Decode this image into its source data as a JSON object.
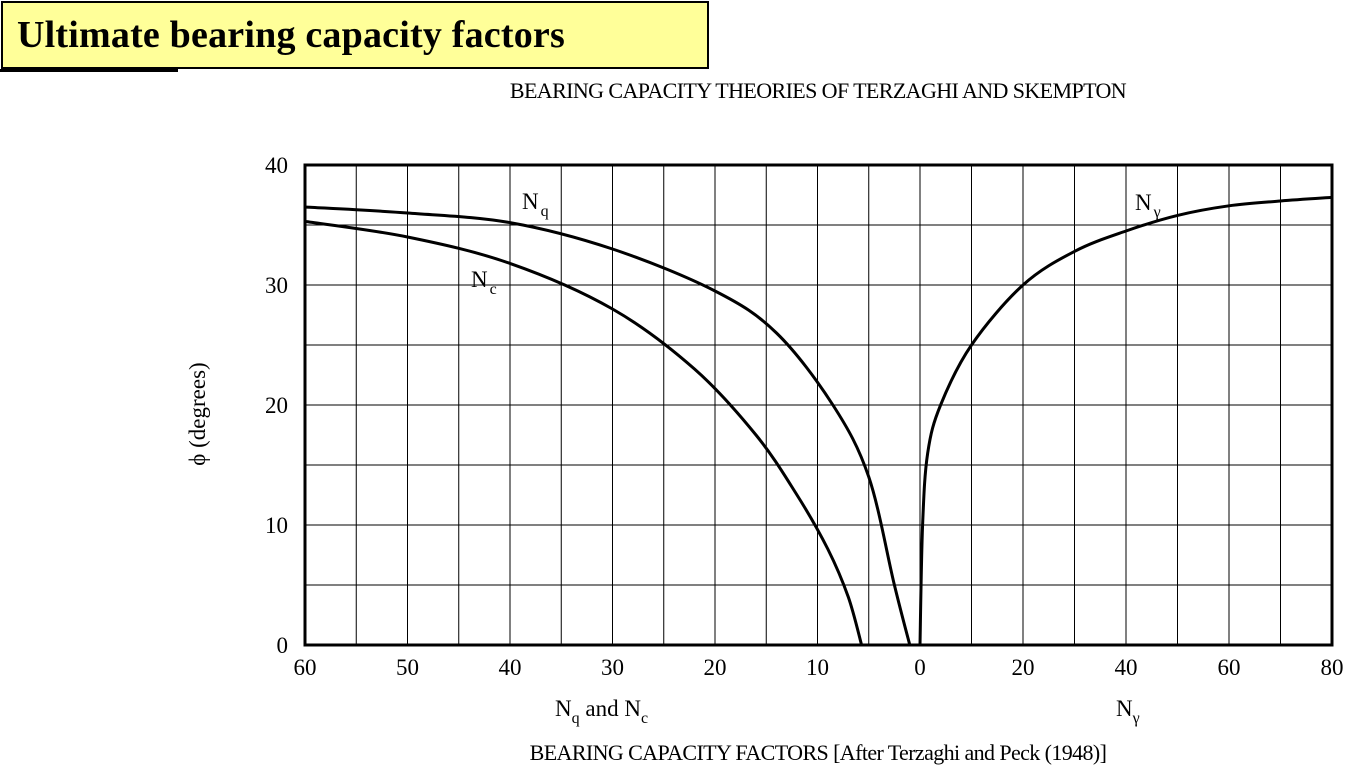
{
  "header": {
    "title": "Ultimate bearing capacity factors",
    "title_bg": "#ffff99"
  },
  "chart_data": {
    "type": "line",
    "title": "BEARING CAPACITY THEORIES OF TERZAGHI AND SKEMPTON",
    "caption": "BEARING CAPACITY FACTORS [After Terzaghi and Peck (1948)]",
    "ylabel": "ϕ (degrees)",
    "ylim": [
      0,
      40
    ],
    "y_ticks": [
      "0",
      "10",
      "20",
      "30",
      "40"
    ],
    "left_axis": {
      "label_main": "N",
      "label_sub1": "q",
      "label_mid": " and N",
      "label_sub2": "c",
      "xlim": [
        60,
        0
      ],
      "tick_values": [
        60,
        50,
        40,
        30,
        20,
        10,
        0
      ],
      "tick_labels": [
        "60",
        "50",
        "40",
        "30",
        "20",
        "10",
        "0"
      ]
    },
    "right_axis": {
      "label_main": "N",
      "label_sub": "γ",
      "xlim": [
        0,
        80
      ],
      "tick_values": [
        0,
        20,
        40,
        60,
        80
      ],
      "tick_labels": [
        "0",
        "20",
        "40",
        "60",
        "80"
      ]
    },
    "series": [
      {
        "name": "Nq",
        "label_main": "N",
        "label_sub": "q",
        "axis": "left",
        "points": [
          [
            1.0,
            0
          ],
          [
            2.5,
            5
          ],
          [
            5.0,
            14
          ],
          [
            8.5,
            20
          ],
          [
            14.0,
            26
          ],
          [
            20.0,
            29.5
          ],
          [
            30.0,
            33
          ],
          [
            40.0,
            35.2
          ],
          [
            50.0,
            36.0
          ],
          [
            60.0,
            36.5
          ]
        ]
      },
      {
        "name": "Nc",
        "label_main": "N",
        "label_sub": "c",
        "axis": "left",
        "points": [
          [
            5.7,
            0
          ],
          [
            7.0,
            4
          ],
          [
            9.0,
            8
          ],
          [
            12.0,
            12.5
          ],
          [
            16.0,
            17.5
          ],
          [
            22.0,
            23
          ],
          [
            30.0,
            28
          ],
          [
            40.0,
            31.8
          ],
          [
            50.0,
            34
          ],
          [
            60.0,
            35.3
          ]
        ]
      },
      {
        "name": "Nγ",
        "label_main": "N",
        "label_sub": "γ",
        "axis": "right",
        "points": [
          [
            0,
            0
          ],
          [
            0.5,
            10
          ],
          [
            1.5,
            16
          ],
          [
            4.0,
            20
          ],
          [
            10.0,
            25
          ],
          [
            20.0,
            30
          ],
          [
            30.0,
            32.8
          ],
          [
            40.0,
            34.5
          ],
          [
            50.0,
            35.8
          ],
          [
            60.0,
            36.6
          ],
          [
            70.0,
            37.0
          ],
          [
            80.0,
            37.3
          ]
        ]
      }
    ]
  }
}
